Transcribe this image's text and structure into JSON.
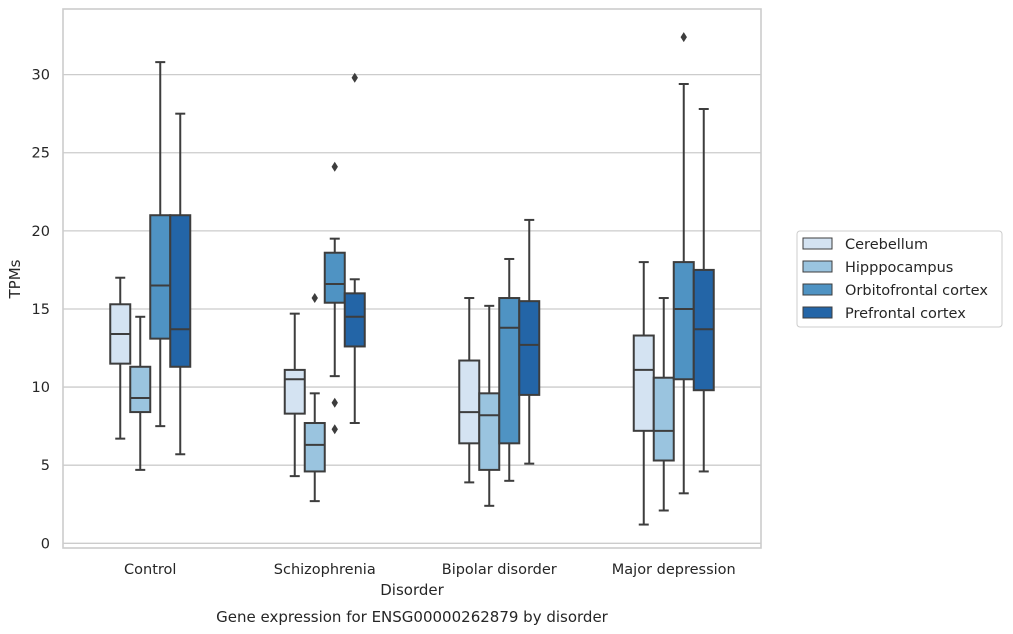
{
  "chart_data": {
    "type": "box",
    "caption": "Gene expression for ENSG00000262879 by disorder",
    "xlabel": "Disorder",
    "ylabel": "TPMs",
    "ylim": [
      -0.3,
      34.2
    ],
    "yticks": [
      0,
      5,
      10,
      15,
      20,
      25,
      30
    ],
    "grid": "horizontal",
    "legend_position": "right",
    "categories": [
      "Control",
      "Schizophrenia",
      "Bipolar disorder",
      "Major depression"
    ],
    "series": [
      {
        "name": "Cerebellum",
        "color": "#d4e3f2",
        "boxes": [
          {
            "whisker_low": 6.7,
            "q1": 11.5,
            "median": 13.4,
            "q3": 15.3,
            "whisker_high": 17.0,
            "outliers": []
          },
          {
            "whisker_low": 4.3,
            "q1": 8.3,
            "median": 10.5,
            "q3": 11.1,
            "whisker_high": 14.7,
            "outliers": []
          },
          {
            "whisker_low": 3.9,
            "q1": 6.4,
            "median": 8.4,
            "q3": 11.7,
            "whisker_high": 15.7,
            "outliers": []
          },
          {
            "whisker_low": 1.2,
            "q1": 7.2,
            "median": 11.1,
            "q3": 13.3,
            "whisker_high": 18.0,
            "outliers": []
          }
        ]
      },
      {
        "name": "Hipppocampus",
        "color": "#9ac4df",
        "boxes": [
          {
            "whisker_low": 4.7,
            "q1": 8.4,
            "median": 9.3,
            "q3": 11.3,
            "whisker_high": 14.5,
            "outliers": []
          },
          {
            "whisker_low": 2.7,
            "q1": 4.6,
            "median": 6.3,
            "q3": 7.7,
            "whisker_high": 9.6,
            "outliers": [
              15.7
            ]
          },
          {
            "whisker_low": 2.4,
            "q1": 4.7,
            "median": 8.2,
            "q3": 9.6,
            "whisker_high": 15.2,
            "outliers": []
          },
          {
            "whisker_low": 2.1,
            "q1": 5.3,
            "median": 7.2,
            "q3": 10.6,
            "whisker_high": 15.7,
            "outliers": []
          }
        ]
      },
      {
        "name": "Orbitofrontal cortex",
        "color": "#4f93c3",
        "boxes": [
          {
            "whisker_low": 7.5,
            "q1": 13.1,
            "median": 16.5,
            "q3": 21.0,
            "whisker_high": 30.8,
            "outliers": []
          },
          {
            "whisker_low": 10.7,
            "q1": 15.4,
            "median": 16.6,
            "q3": 18.6,
            "whisker_high": 19.5,
            "outliers": [
              24.1,
              9.0,
              7.3
            ]
          },
          {
            "whisker_low": 4.0,
            "q1": 6.4,
            "median": 13.8,
            "q3": 15.7,
            "whisker_high": 18.2,
            "outliers": []
          },
          {
            "whisker_low": 3.2,
            "q1": 10.5,
            "median": 15.0,
            "q3": 18.0,
            "whisker_high": 29.4,
            "outliers": [
              32.4
            ]
          }
        ]
      },
      {
        "name": "Prefrontal cortex",
        "color": "#2365a7",
        "boxes": [
          {
            "whisker_low": 5.7,
            "q1": 11.3,
            "median": 13.7,
            "q3": 21.0,
            "whisker_high": 27.5,
            "outliers": []
          },
          {
            "whisker_low": 7.7,
            "q1": 12.6,
            "median": 14.5,
            "q3": 16.0,
            "whisker_high": 16.9,
            "outliers": [
              29.8
            ]
          },
          {
            "whisker_low": 5.1,
            "q1": 9.5,
            "median": 12.7,
            "q3": 15.5,
            "whisker_high": 20.7,
            "outliers": []
          },
          {
            "whisker_low": 4.6,
            "q1": 9.8,
            "median": 13.7,
            "q3": 17.5,
            "whisker_high": 27.8,
            "outliers": []
          }
        ]
      }
    ]
  }
}
